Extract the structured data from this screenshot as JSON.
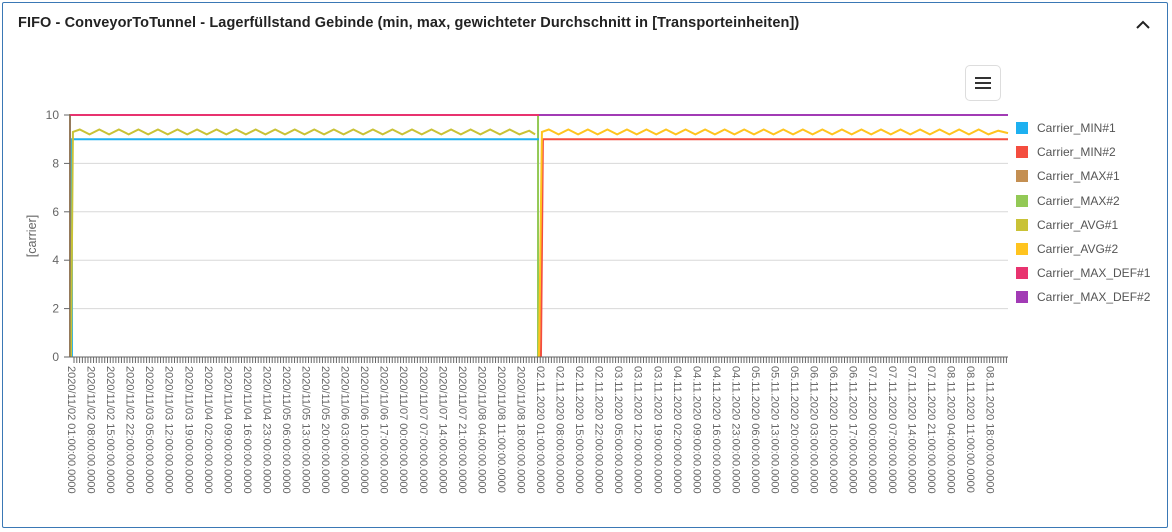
{
  "header": {
    "title": "FIFO - ConveyorToTunnel - Lagerfüllstand Gebinde (min, max, gewichteter Durchschnitt in [Transporteinheiten])",
    "collapse_icon": "chevron-up-icon",
    "menu_icon": "hamburger-menu-icon"
  },
  "colors": {
    "border": "#3a78b5",
    "grid": "#d8d8d8",
    "axis": "#666666"
  },
  "chart_data": {
    "type": "line",
    "title": "",
    "xlabel": "",
    "ylabel": "[carrier]",
    "ylim": [
      0,
      10
    ],
    "yticks": [
      0,
      2,
      4,
      6,
      8,
      10
    ],
    "grid": true,
    "legend_position": "right",
    "categories": [
      "2020/11/02 01:00:00.0000",
      "2020/11/02 08:00:00.0000",
      "2020/11/02 15:00:00.0000",
      "2020/11/02 22:00:00.0000",
      "2020/11/03 05:00:00.0000",
      "2020/11/03 12:00:00.0000",
      "2020/11/03 19:00:00.0000",
      "2020/11/04 02:00:00.0000",
      "2020/11/04 09:00:00.0000",
      "2020/11/04 16:00:00.0000",
      "2020/11/04 23:00:00.0000",
      "2020/11/05 06:00:00.0000",
      "2020/11/05 13:00:00.0000",
      "2020/11/05 20:00:00.0000",
      "2020/11/06 03:00:00.0000",
      "2020/11/06 10:00:00.0000",
      "2020/11/06 17:00:00.0000",
      "2020/11/07 00:00:00.0000",
      "2020/11/07 07:00:00.0000",
      "2020/11/07 14:00:00.0000",
      "2020/11/07 21:00:00.0000",
      "2020/11/08 04:00:00.0000",
      "2020/11/08 11:00:00.0000",
      "2020/11/08 18:00:00.0000",
      "02.11.2020 01:00:00.0000",
      "02.11.2020 08:00:00.0000",
      "02.11.2020 15:00:00.0000",
      "02.11.2020 22:00:00.0000",
      "03.11.2020 05:00:00.0000",
      "03.11.2020 12:00:00.0000",
      "03.11.2020 19:00:00.0000",
      "04.11.2020 02:00:00.0000",
      "04.11.2020 09:00:00.0000",
      "04.11.2020 16:00:00.0000",
      "04.11.2020 23:00:00.0000",
      "05.11.2020 06:00:00.0000",
      "05.11.2020 13:00:00.0000",
      "05.11.2020 20:00:00.0000",
      "06.11.2020 03:00:00.0000",
      "06.11.2020 10:00:00.0000",
      "06.11.2020 17:00:00.0000",
      "07.11.2020 00:00:00.0000",
      "07.11.2020 07:00:00.0000",
      "07.11.2020 14:00:00.0000",
      "07.11.2020 21:00:00.0000",
      "08.11.2020 04:00:00.0000",
      "08.11.2020 11:00:00.0000",
      "08.11.2020 18:00:00.0000"
    ],
    "series": [
      {
        "name": "Carrier_MIN#1",
        "color": "#1eb0f0",
        "points": [
          [
            0.1,
            0
          ],
          [
            0.1,
            9
          ],
          [
            24,
            9
          ]
        ]
      },
      {
        "name": "Carrier_MIN#2",
        "color": "#f44d3f",
        "points": [
          [
            24.1,
            0
          ],
          [
            24.2,
            9
          ],
          [
            48,
            9
          ]
        ]
      },
      {
        "name": "Carrier_MAX#1",
        "color": "#c48f52",
        "points": [
          [
            0,
            0
          ],
          [
            0,
            10
          ],
          [
            24,
            10
          ]
        ]
      },
      {
        "name": "Carrier_MAX#2",
        "color": "#93c956",
        "points": [
          [
            23.95,
            0
          ],
          [
            23.95,
            10
          ],
          [
            48,
            10
          ]
        ]
      },
      {
        "name": "Carrier_AVG#1",
        "color": "#c9c236",
        "points": [
          [
            0.05,
            0
          ],
          [
            0.15,
            9.3
          ],
          [
            0.5,
            9.4
          ],
          [
            1,
            9.2
          ],
          [
            1.5,
            9.4
          ],
          [
            2,
            9.2
          ],
          [
            2.5,
            9.4
          ],
          [
            3,
            9.2
          ],
          [
            3.5,
            9.4
          ],
          [
            4,
            9.2
          ],
          [
            4.5,
            9.4
          ],
          [
            5,
            9.2
          ],
          [
            5.5,
            9.4
          ],
          [
            6,
            9.2
          ],
          [
            6.5,
            9.4
          ],
          [
            7,
            9.2
          ],
          [
            7.5,
            9.4
          ],
          [
            8,
            9.2
          ],
          [
            8.5,
            9.4
          ],
          [
            9,
            9.2
          ],
          [
            9.5,
            9.4
          ],
          [
            10,
            9.2
          ],
          [
            10.5,
            9.4
          ],
          [
            11,
            9.2
          ],
          [
            11.5,
            9.4
          ],
          [
            12,
            9.2
          ],
          [
            12.5,
            9.4
          ],
          [
            13,
            9.2
          ],
          [
            13.5,
            9.4
          ],
          [
            14,
            9.2
          ],
          [
            14.5,
            9.4
          ],
          [
            15,
            9.2
          ],
          [
            15.5,
            9.4
          ],
          [
            16,
            9.2
          ],
          [
            16.5,
            9.4
          ],
          [
            17,
            9.2
          ],
          [
            17.5,
            9.4
          ],
          [
            18,
            9.2
          ],
          [
            18.5,
            9.4
          ],
          [
            19,
            9.2
          ],
          [
            19.5,
            9.4
          ],
          [
            20,
            9.2
          ],
          [
            20.5,
            9.4
          ],
          [
            21,
            9.2
          ],
          [
            21.5,
            9.4
          ],
          [
            22,
            9.2
          ],
          [
            22.5,
            9.4
          ],
          [
            23,
            9.2
          ],
          [
            23.5,
            9.35
          ],
          [
            23.8,
            9.2
          ]
        ]
      },
      {
        "name": "Carrier_AVG#2",
        "color": "#ffc41f",
        "points": [
          [
            24,
            0
          ],
          [
            24.15,
            9.3
          ],
          [
            24.5,
            9.4
          ],
          [
            25,
            9.2
          ],
          [
            25.5,
            9.4
          ],
          [
            26,
            9.2
          ],
          [
            26.5,
            9.4
          ],
          [
            27,
            9.2
          ],
          [
            27.5,
            9.4
          ],
          [
            28,
            9.2
          ],
          [
            28.5,
            9.4
          ],
          [
            29,
            9.2
          ],
          [
            29.5,
            9.4
          ],
          [
            30,
            9.2
          ],
          [
            30.5,
            9.4
          ],
          [
            31,
            9.2
          ],
          [
            31.5,
            9.4
          ],
          [
            32,
            9.2
          ],
          [
            32.5,
            9.4
          ],
          [
            33,
            9.2
          ],
          [
            33.5,
            9.4
          ],
          [
            34,
            9.2
          ],
          [
            34.5,
            9.4
          ],
          [
            35,
            9.2
          ],
          [
            35.5,
            9.4
          ],
          [
            36,
            9.2
          ],
          [
            36.5,
            9.4
          ],
          [
            37,
            9.2
          ],
          [
            37.5,
            9.4
          ],
          [
            38,
            9.2
          ],
          [
            38.5,
            9.4
          ],
          [
            39,
            9.2
          ],
          [
            39.5,
            9.4
          ],
          [
            40,
            9.2
          ],
          [
            40.5,
            9.4
          ],
          [
            41,
            9.2
          ],
          [
            41.5,
            9.4
          ],
          [
            42,
            9.2
          ],
          [
            42.5,
            9.4
          ],
          [
            43,
            9.2
          ],
          [
            43.5,
            9.4
          ],
          [
            44,
            9.2
          ],
          [
            44.5,
            9.4
          ],
          [
            45,
            9.2
          ],
          [
            45.5,
            9.4
          ],
          [
            46,
            9.2
          ],
          [
            46.5,
            9.4
          ],
          [
            47,
            9.2
          ],
          [
            47.5,
            9.35
          ],
          [
            48,
            9.25
          ]
        ]
      },
      {
        "name": "Carrier_MAX_DEF#1",
        "color": "#e8336f",
        "points": [
          [
            0,
            10
          ],
          [
            24,
            10
          ]
        ]
      },
      {
        "name": "Carrier_MAX_DEF#2",
        "color": "#a23bb5",
        "points": [
          [
            24,
            10
          ],
          [
            48,
            10
          ]
        ]
      }
    ]
  }
}
